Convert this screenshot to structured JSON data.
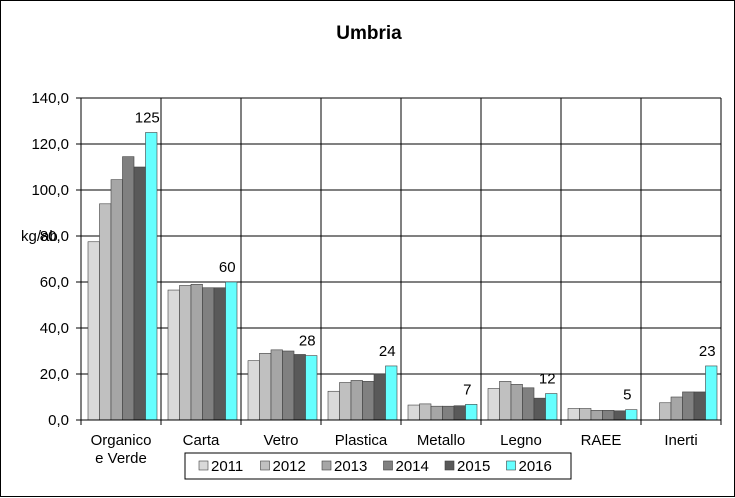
{
  "chart_data": {
    "type": "bar",
    "title": "Umbria",
    "ylabel": "kg/ab",
    "xlabel": "",
    "ylim": [
      0,
      140
    ],
    "yticks": [
      "0,0",
      "20,0",
      "40,0",
      "60,0",
      "80,0",
      "100,0",
      "120,0",
      "140,0"
    ],
    "ytick_values": [
      0,
      20,
      40,
      60,
      80,
      100,
      120,
      140
    ],
    "grid": true,
    "legend_position": "bottom",
    "categories": [
      [
        "Organico",
        "e Verde"
      ],
      [
        "Carta"
      ],
      [
        "Vetro"
      ],
      [
        "Plastica"
      ],
      [
        "Metallo"
      ],
      [
        "Legno"
      ],
      [
        "RAEE"
      ],
      [
        "Inerti"
      ]
    ],
    "series": [
      {
        "name": "2011",
        "color": "#d9d9d9",
        "values": [
          77.5,
          56.5,
          25.8,
          12.5,
          6.5,
          13.7,
          5.0,
          0
        ]
      },
      {
        "name": "2012",
        "color": "#c0c0c0",
        "values": [
          94.0,
          58.5,
          29.0,
          16.3,
          7.0,
          16.8,
          5.0,
          7.5
        ]
      },
      {
        "name": "2013",
        "color": "#a6a6a6",
        "values": [
          104.5,
          59.0,
          30.5,
          17.2,
          6.0,
          15.5,
          4.2,
          10.0
        ]
      },
      {
        "name": "2014",
        "color": "#808080",
        "values": [
          114.5,
          57.5,
          30.0,
          16.8,
          6.0,
          14.0,
          4.2,
          12.2
        ]
      },
      {
        "name": "2015",
        "color": "#595959",
        "values": [
          110.0,
          57.5,
          28.5,
          20.0,
          6.2,
          9.5,
          4.0,
          12.2
        ]
      },
      {
        "name": "2016",
        "color": "#66ffff",
        "values": [
          125.0,
          60.0,
          28.0,
          23.5,
          6.8,
          11.5,
          4.5,
          23.5
        ]
      }
    ],
    "data_labels": [
      "125",
      "60",
      "28",
      "24",
      "7",
      "12",
      "5",
      "23"
    ]
  }
}
